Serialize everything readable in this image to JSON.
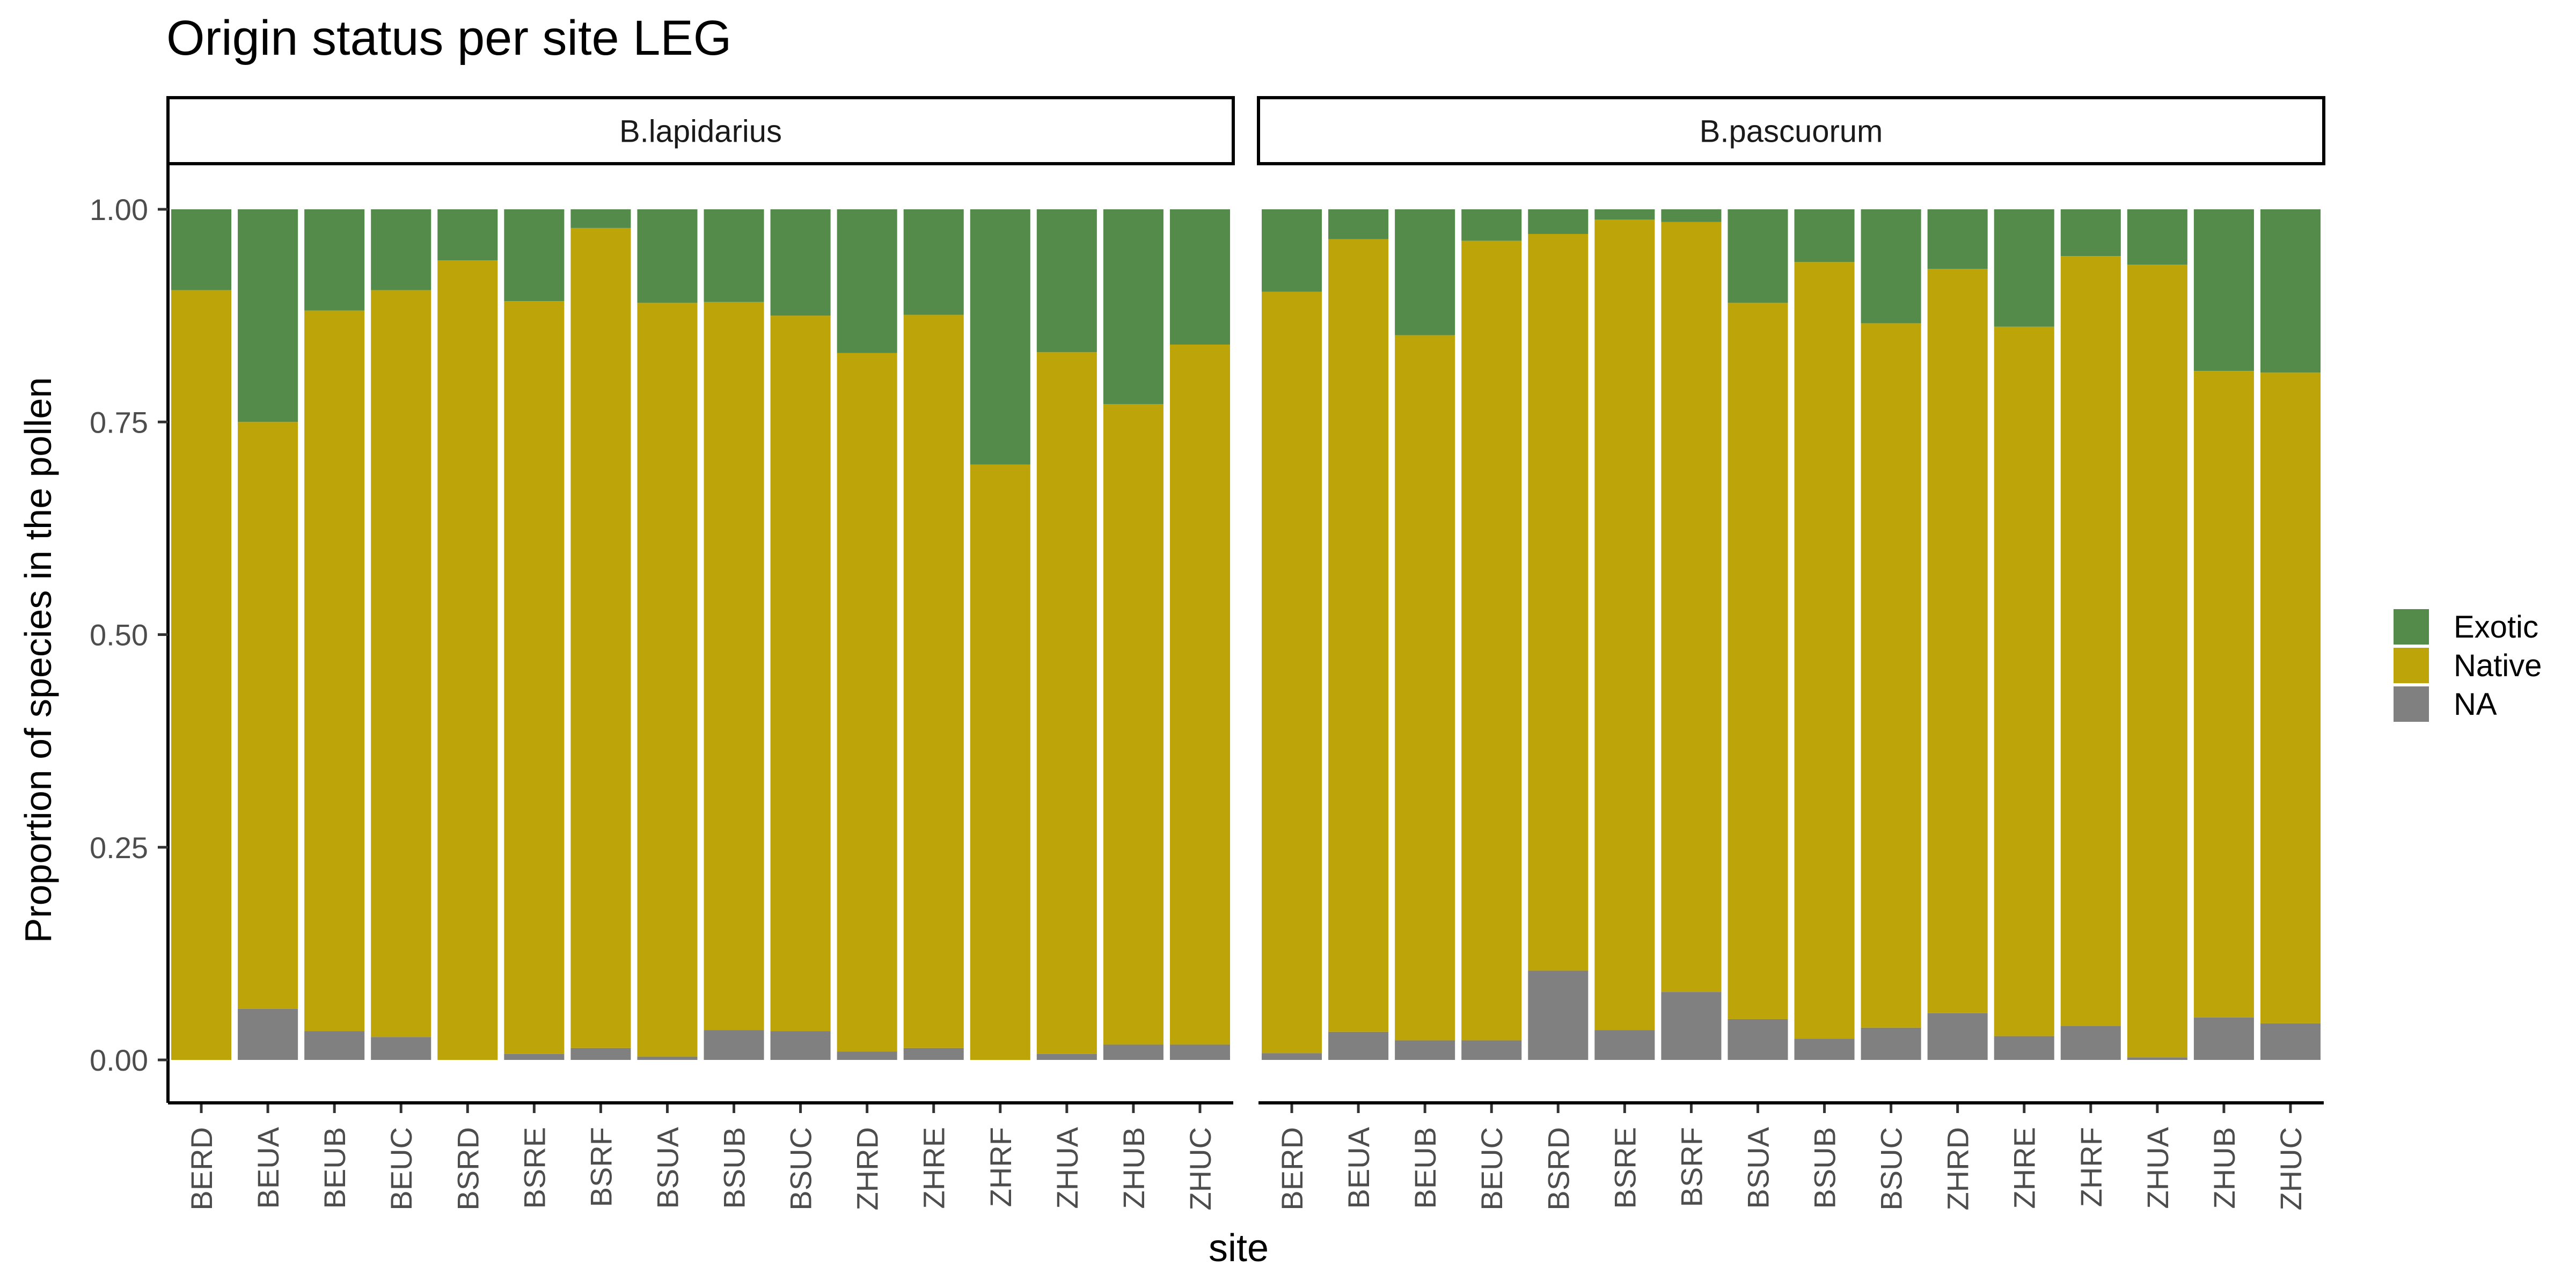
{
  "chart_data": {
    "type": "bar",
    "stacked": true,
    "title": "Origin status per site LEG",
    "xlabel": "site",
    "ylabel": "Proportion of species in the pollen",
    "ylim": [
      0,
      1
    ],
    "yticks": [
      "0.00",
      "0.25",
      "0.50",
      "0.75",
      "1.00"
    ],
    "legend_position": "right",
    "grid": false,
    "colors": {
      "Exotic": "#548B4A",
      "Native": "#BDA409",
      "NA": "#808080"
    },
    "legend": [
      {
        "label": "Exotic",
        "color": "#548B4A"
      },
      {
        "label": "Native",
        "color": "#BDA409"
      },
      {
        "label": "NA",
        "color": "#808080"
      }
    ],
    "facets": [
      {
        "name": "B.lapidarius",
        "categories": [
          "BERD",
          "BEUA",
          "BEUB",
          "BEUC",
          "BSRD",
          "BSRE",
          "BSRF",
          "BSUA",
          "BSUB",
          "BSUC",
          "ZHRD",
          "ZHRE",
          "ZHRF",
          "ZHUA",
          "ZHUB",
          "ZHUC"
        ],
        "series": [
          {
            "name": "NA",
            "values": [
              0.0,
              0.06,
              0.034,
              0.027,
              0.0,
              0.007,
              0.014,
              0.004,
              0.035,
              0.034,
              0.01,
              0.014,
              0.0,
              0.007,
              0.018,
              0.018
            ]
          },
          {
            "name": "Native",
            "values": [
              0.905,
              0.69,
              0.847,
              0.878,
              0.94,
              0.885,
              0.964,
              0.886,
              0.856,
              0.841,
              0.821,
              0.862,
              0.7,
              0.825,
              0.753,
              0.823
            ]
          },
          {
            "name": "Exotic",
            "values": [
              0.095,
              0.25,
              0.119,
              0.095,
              0.06,
              0.108,
              0.022,
              0.11,
              0.109,
              0.125,
              0.169,
              0.124,
              0.3,
              0.168,
              0.229,
              0.159
            ]
          }
        ]
      },
      {
        "name": "B.pascuorum",
        "categories": [
          "BERD",
          "BEUA",
          "BEUB",
          "BEUC",
          "BSRD",
          "BSRE",
          "BSRF",
          "BSUA",
          "BSUB",
          "BSUC",
          "ZHRD",
          "ZHRE",
          "ZHRF",
          "ZHUA",
          "ZHUB",
          "ZHUC"
        ],
        "series": [
          {
            "name": "NA",
            "values": [
              0.008,
              0.033,
              0.023,
              0.023,
              0.105,
              0.035,
              0.08,
              0.048,
              0.025,
              0.038,
              0.055,
              0.028,
              0.04,
              0.003,
              0.05,
              0.043
            ]
          },
          {
            "name": "Native",
            "values": [
              0.895,
              0.932,
              0.829,
              0.94,
              0.866,
              0.953,
              0.905,
              0.842,
              0.913,
              0.828,
              0.875,
              0.834,
              0.905,
              0.932,
              0.76,
              0.765
            ]
          },
          {
            "name": "Exotic",
            "values": [
              0.097,
              0.035,
              0.148,
              0.037,
              0.029,
              0.012,
              0.015,
              0.11,
              0.062,
              0.134,
              0.07,
              0.138,
              0.055,
              0.065,
              0.19,
              0.192
            ]
          }
        ]
      }
    ]
  }
}
